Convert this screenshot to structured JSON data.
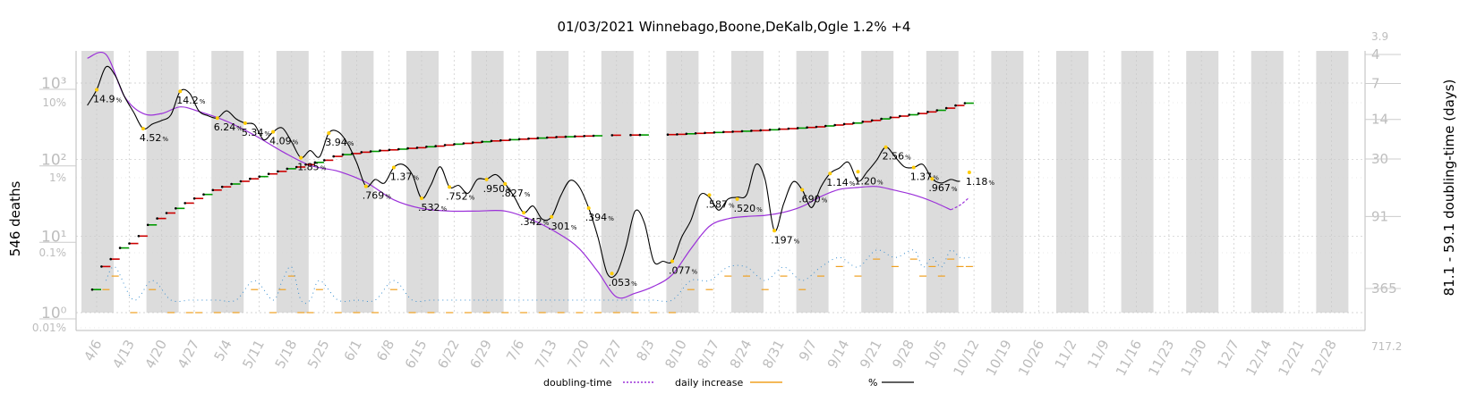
{
  "chart_data": {
    "type": "line",
    "title": "01/03/2021 Winnebago,Boone,DeKalb,Ogle 1.2% +4",
    "ylabel_left": "546 deaths",
    "ylabel_right": "81.1 - 59.1 doubling-time (days)",
    "x_tick_labels": [
      "4/6",
      "4/13",
      "4/20",
      "4/27",
      "5/4",
      "5/11",
      "5/18",
      "5/25",
      "6/1",
      "6/8",
      "6/15",
      "6/22",
      "6/29",
      "7/6",
      "7/13",
      "7/20",
      "7/27",
      "8/3",
      "8/10",
      "8/17",
      "8/24",
      "8/31",
      "9/7",
      "9/14",
      "9/21",
      "9/28",
      "10/5",
      "10/12",
      "10/19",
      "10/26",
      "11/2",
      "11/9",
      "11/16",
      "11/23",
      "11/30",
      "12/7",
      "12/14",
      "12/21",
      "12/28"
    ],
    "y_left_ticks": [
      {
        "label": "10³",
        "value": 1000
      },
      {
        "label": "10²",
        "value": 100
      },
      {
        "label": "10¹",
        "value": 10
      },
      {
        "label": "10⁰",
        "value": 1
      }
    ],
    "y_pct_ticks": [
      {
        "label": "10%",
        "value": 10
      },
      {
        "label": "1%",
        "value": 1
      },
      {
        "label": "0.1%",
        "value": 0.1
      },
      {
        "label": "0.01%",
        "value": 0.01
      }
    ],
    "y_right_ticks": [
      {
        "label": "3.9",
        "value": 3.9
      },
      {
        "label": "4",
        "value": 4
      },
      {
        "label": "7",
        "value": 7
      },
      {
        "label": "14",
        "value": 14
      },
      {
        "label": "30",
        "value": 30
      },
      {
        "label": "91",
        "value": 91
      },
      {
        "label": "365",
        "value": 365
      },
      {
        "label": "717.2",
        "value": 717.2
      }
    ],
    "legend": [
      {
        "name": "doubling-time",
        "color": "#9b30d9",
        "style": "dotted"
      },
      {
        "name": "daily increase",
        "color": "#f0a020",
        "style": "solid"
      },
      {
        "name": "%",
        "color": "#000000",
        "style": "solid"
      }
    ],
    "legend_position": "bottom",
    "pct_series": {
      "day": [
        0,
        2,
        4,
        6,
        8,
        10,
        12,
        14,
        16,
        18,
        20,
        22,
        24,
        26,
        28,
        30,
        32,
        34,
        36,
        38,
        40,
        42,
        44,
        46,
        48,
        50,
        52,
        54,
        56,
        58,
        60,
        62,
        64,
        66,
        68,
        70,
        72,
        74,
        76,
        78,
        80,
        82,
        84,
        86,
        88,
        90,
        92,
        94,
        96,
        98,
        100,
        102,
        104,
        106,
        108,
        110,
        112,
        114,
        116,
        118,
        120,
        122,
        124,
        126,
        128,
        130,
        132,
        134,
        136,
        138,
        140,
        142,
        144,
        146,
        148,
        150,
        152,
        154,
        156,
        158,
        160,
        162,
        164,
        166,
        168,
        170,
        172,
        174,
        176,
        178,
        180,
        182,
        184,
        186,
        188,
        190,
        192,
        194,
        196,
        198,
        200,
        202,
        204,
        206,
        208,
        210,
        212,
        214,
        216,
        218,
        220,
        222,
        224,
        226,
        228,
        230,
        232,
        234,
        236,
        238,
        240,
        242,
        244,
        246,
        248,
        250,
        252,
        254,
        256,
        258,
        260,
        262,
        264,
        266,
        268,
        270,
        272,
        274,
        276,
        278,
        280,
        282,
        284,
        286
      ],
      "value": [
        9.2,
        14.9,
        30,
        23,
        12,
        7.4,
        4.52,
        5.2,
        5.8,
        6.9,
        14.2,
        13.4,
        7.8,
        6.7,
        6.24,
        7.8,
        6.1,
        5.34,
        5.1,
        3.2,
        4.09,
        4.6,
        3.0,
        1.85,
        2.3,
        1.9,
        3.94,
        4.1,
        2.9,
        1.6,
        0.769,
        0.95,
        0.85,
        1.37,
        1.5,
        1.1,
        0.532,
        0.8,
        1.4,
        0.752,
        0.79,
        0.62,
        0.95,
        0.96,
        1.1,
        0.827,
        0.55,
        0.342,
        0.42,
        0.28,
        0.301,
        0.58,
        0.92,
        0.75,
        0.394,
        0.16,
        0.053,
        0.053,
        0.12,
        0.36,
        0.25,
        0.077,
        0.077,
        0.077,
        0.16,
        0.27,
        0.587,
        0.55,
        0.37,
        0.52,
        0.55,
        0.59,
        1.5,
        0.95,
        0.197,
        0.45,
        0.88,
        0.69,
        0.4,
        0.75,
        1.14,
        1.35,
        1.6,
        0.9,
        1.2,
        1.7,
        2.56,
        1.9,
        1.4,
        1.37,
        1.5,
        0.967,
        0.85,
        0.95,
        0.9,
        1.18
      ]
    },
    "pct_labels": [
      {
        "text": "14.9",
        "day": 2,
        "value": 14.9
      },
      {
        "text": "4.52",
        "day": 12,
        "value": 4.52
      },
      {
        "text": "14.2",
        "day": 20,
        "value": 14.2
      },
      {
        "text": "6.24",
        "day": 28,
        "value": 6.24
      },
      {
        "text": "5.34",
        "day": 34,
        "value": 5.34
      },
      {
        "text": "4.09",
        "day": 40,
        "value": 4.09
      },
      {
        "text": "1.85",
        "day": 46,
        "value": 1.85
      },
      {
        "text": "3.94",
        "day": 52,
        "value": 3.94
      },
      {
        "text": ".769",
        "day": 60,
        "value": 0.769
      },
      {
        "text": "1.37",
        "day": 66,
        "value": 1.37
      },
      {
        "text": ".532",
        "day": 72,
        "value": 0.532
      },
      {
        "text": ".752",
        "day": 78,
        "value": 0.752
      },
      {
        "text": ".950",
        "day": 86,
        "value": 0.95
      },
      {
        "text": ".827",
        "day": 90,
        "value": 0.827
      },
      {
        "text": ".342",
        "day": 94,
        "value": 0.342
      },
      {
        "text": ".301",
        "day": 100,
        "value": 0.301
      },
      {
        "text": ".394",
        "day": 108,
        "value": 0.394
      },
      {
        "text": ".053",
        "day": 113,
        "value": 0.053
      },
      {
        "text": ".077",
        "day": 126,
        "value": 0.077
      },
      {
        "text": ".587",
        "day": 134,
        "value": 0.587
      },
      {
        "text": ".520",
        "day": 140,
        "value": 0.52
      },
      {
        "text": ".197",
        "day": 148,
        "value": 0.197
      },
      {
        "text": ".690",
        "day": 154,
        "value": 0.69
      },
      {
        "text": "1.14",
        "day": 160,
        "value": 1.14
      },
      {
        "text": "1.20",
        "day": 166,
        "value": 1.2
      },
      {
        "text": "2.56",
        "day": 172,
        "value": 2.56
      },
      {
        "text": "1.37",
        "day": 178,
        "value": 1.37
      },
      {
        "text": ".967",
        "day": 182,
        "value": 0.967
      },
      {
        "text": "1.18",
        "day": 190,
        "value": 1.18
      }
    ],
    "doubling_series": {
      "day": [
        0,
        4,
        8,
        12,
        16,
        20,
        24,
        30,
        36,
        42,
        48,
        54,
        60,
        66,
        72,
        78,
        84,
        90,
        96,
        102,
        106,
        110,
        114,
        118,
        122,
        126,
        130,
        134,
        138,
        142,
        146,
        150,
        154,
        158,
        162,
        166,
        170,
        174,
        178,
        182,
        186,
        188,
        190
      ],
      "value": [
        4.3,
        4.0,
        9.0,
        12.5,
        12.5,
        11.0,
        12.0,
        14.5,
        19.0,
        26,
        34,
        38,
        47,
        66,
        78,
        82,
        82,
        82,
        98,
        130,
        170,
        265,
        430,
        400,
        350,
        280,
        170,
        110,
        95,
        91,
        89,
        84,
        75,
        62,
        54,
        52,
        51,
        55,
        60,
        68,
        80,
        73,
        63
      ]
    },
    "deaths_series": {
      "day": [
        2,
        4,
        6,
        8,
        10,
        12,
        14,
        16,
        18,
        20,
        22,
        24,
        26,
        28,
        30,
        32,
        34,
        36,
        38,
        40,
        42,
        44,
        46,
        48,
        50,
        52,
        54,
        56,
        58,
        60,
        62,
        64,
        66,
        68,
        70,
        72,
        74,
        76,
        78,
        80,
        82,
        84,
        86,
        88,
        90,
        92,
        94,
        96,
        98,
        100,
        102,
        104,
        106,
        108,
        110,
        114,
        118,
        120,
        126,
        128,
        130,
        132,
        134,
        136,
        138,
        140,
        142,
        144,
        146,
        148,
        150,
        152,
        154,
        156,
        158,
        160,
        162,
        164,
        166,
        168,
        170,
        172,
        174,
        176,
        178,
        180,
        182,
        184,
        186,
        188,
        190
      ],
      "value": [
        2,
        4,
        5,
        7,
        8,
        10,
        14,
        17,
        20,
        23,
        27,
        31,
        35,
        40,
        44,
        48,
        52,
        56,
        60,
        65,
        70,
        76,
        80,
        86,
        92,
        98,
        110,
        116,
        120,
        125,
        128,
        131,
        134,
        137,
        140,
        143,
        147,
        150,
        155,
        159,
        163,
        167,
        171,
        175,
        178,
        182,
        185,
        188,
        191,
        194,
        197,
        199,
        201,
        203,
        205,
        208,
        209,
        210,
        212,
        214,
        217,
        220,
        223,
        226,
        229,
        232,
        235,
        238,
        241,
        245,
        250,
        254,
        258,
        263,
        268,
        275,
        283,
        291,
        300,
        312,
        325,
        340,
        355,
        370,
        385,
        400,
        420,
        440,
        470,
        510,
        546
      ]
    },
    "daily_increase": {
      "day": [
        4,
        6,
        10,
        14,
        18,
        22,
        24,
        28,
        32,
        36,
        40,
        42,
        44,
        46,
        48,
        50,
        54,
        58,
        62,
        66,
        70,
        74,
        78,
        82,
        86,
        90,
        94,
        98,
        102,
        106,
        110,
        114,
        118,
        122,
        126,
        130,
        134,
        138,
        142,
        146,
        150,
        154,
        158,
        162,
        166,
        170,
        174,
        178,
        180,
        182,
        184,
        186,
        188,
        190
      ],
      "value": [
        2,
        3,
        1,
        2,
        1,
        1,
        1,
        1,
        1,
        2,
        1,
        2,
        3,
        1,
        1,
        2,
        1,
        1,
        1,
        2,
        1,
        1,
        1,
        1,
        1,
        1,
        1,
        1,
        1,
        1,
        1,
        1,
        1,
        1,
        1,
        2,
        2,
        3,
        3,
        2,
        3,
        2,
        3,
        4,
        3,
        5,
        4,
        5,
        3,
        4,
        3,
        5,
        4,
        4
      ]
    }
  }
}
